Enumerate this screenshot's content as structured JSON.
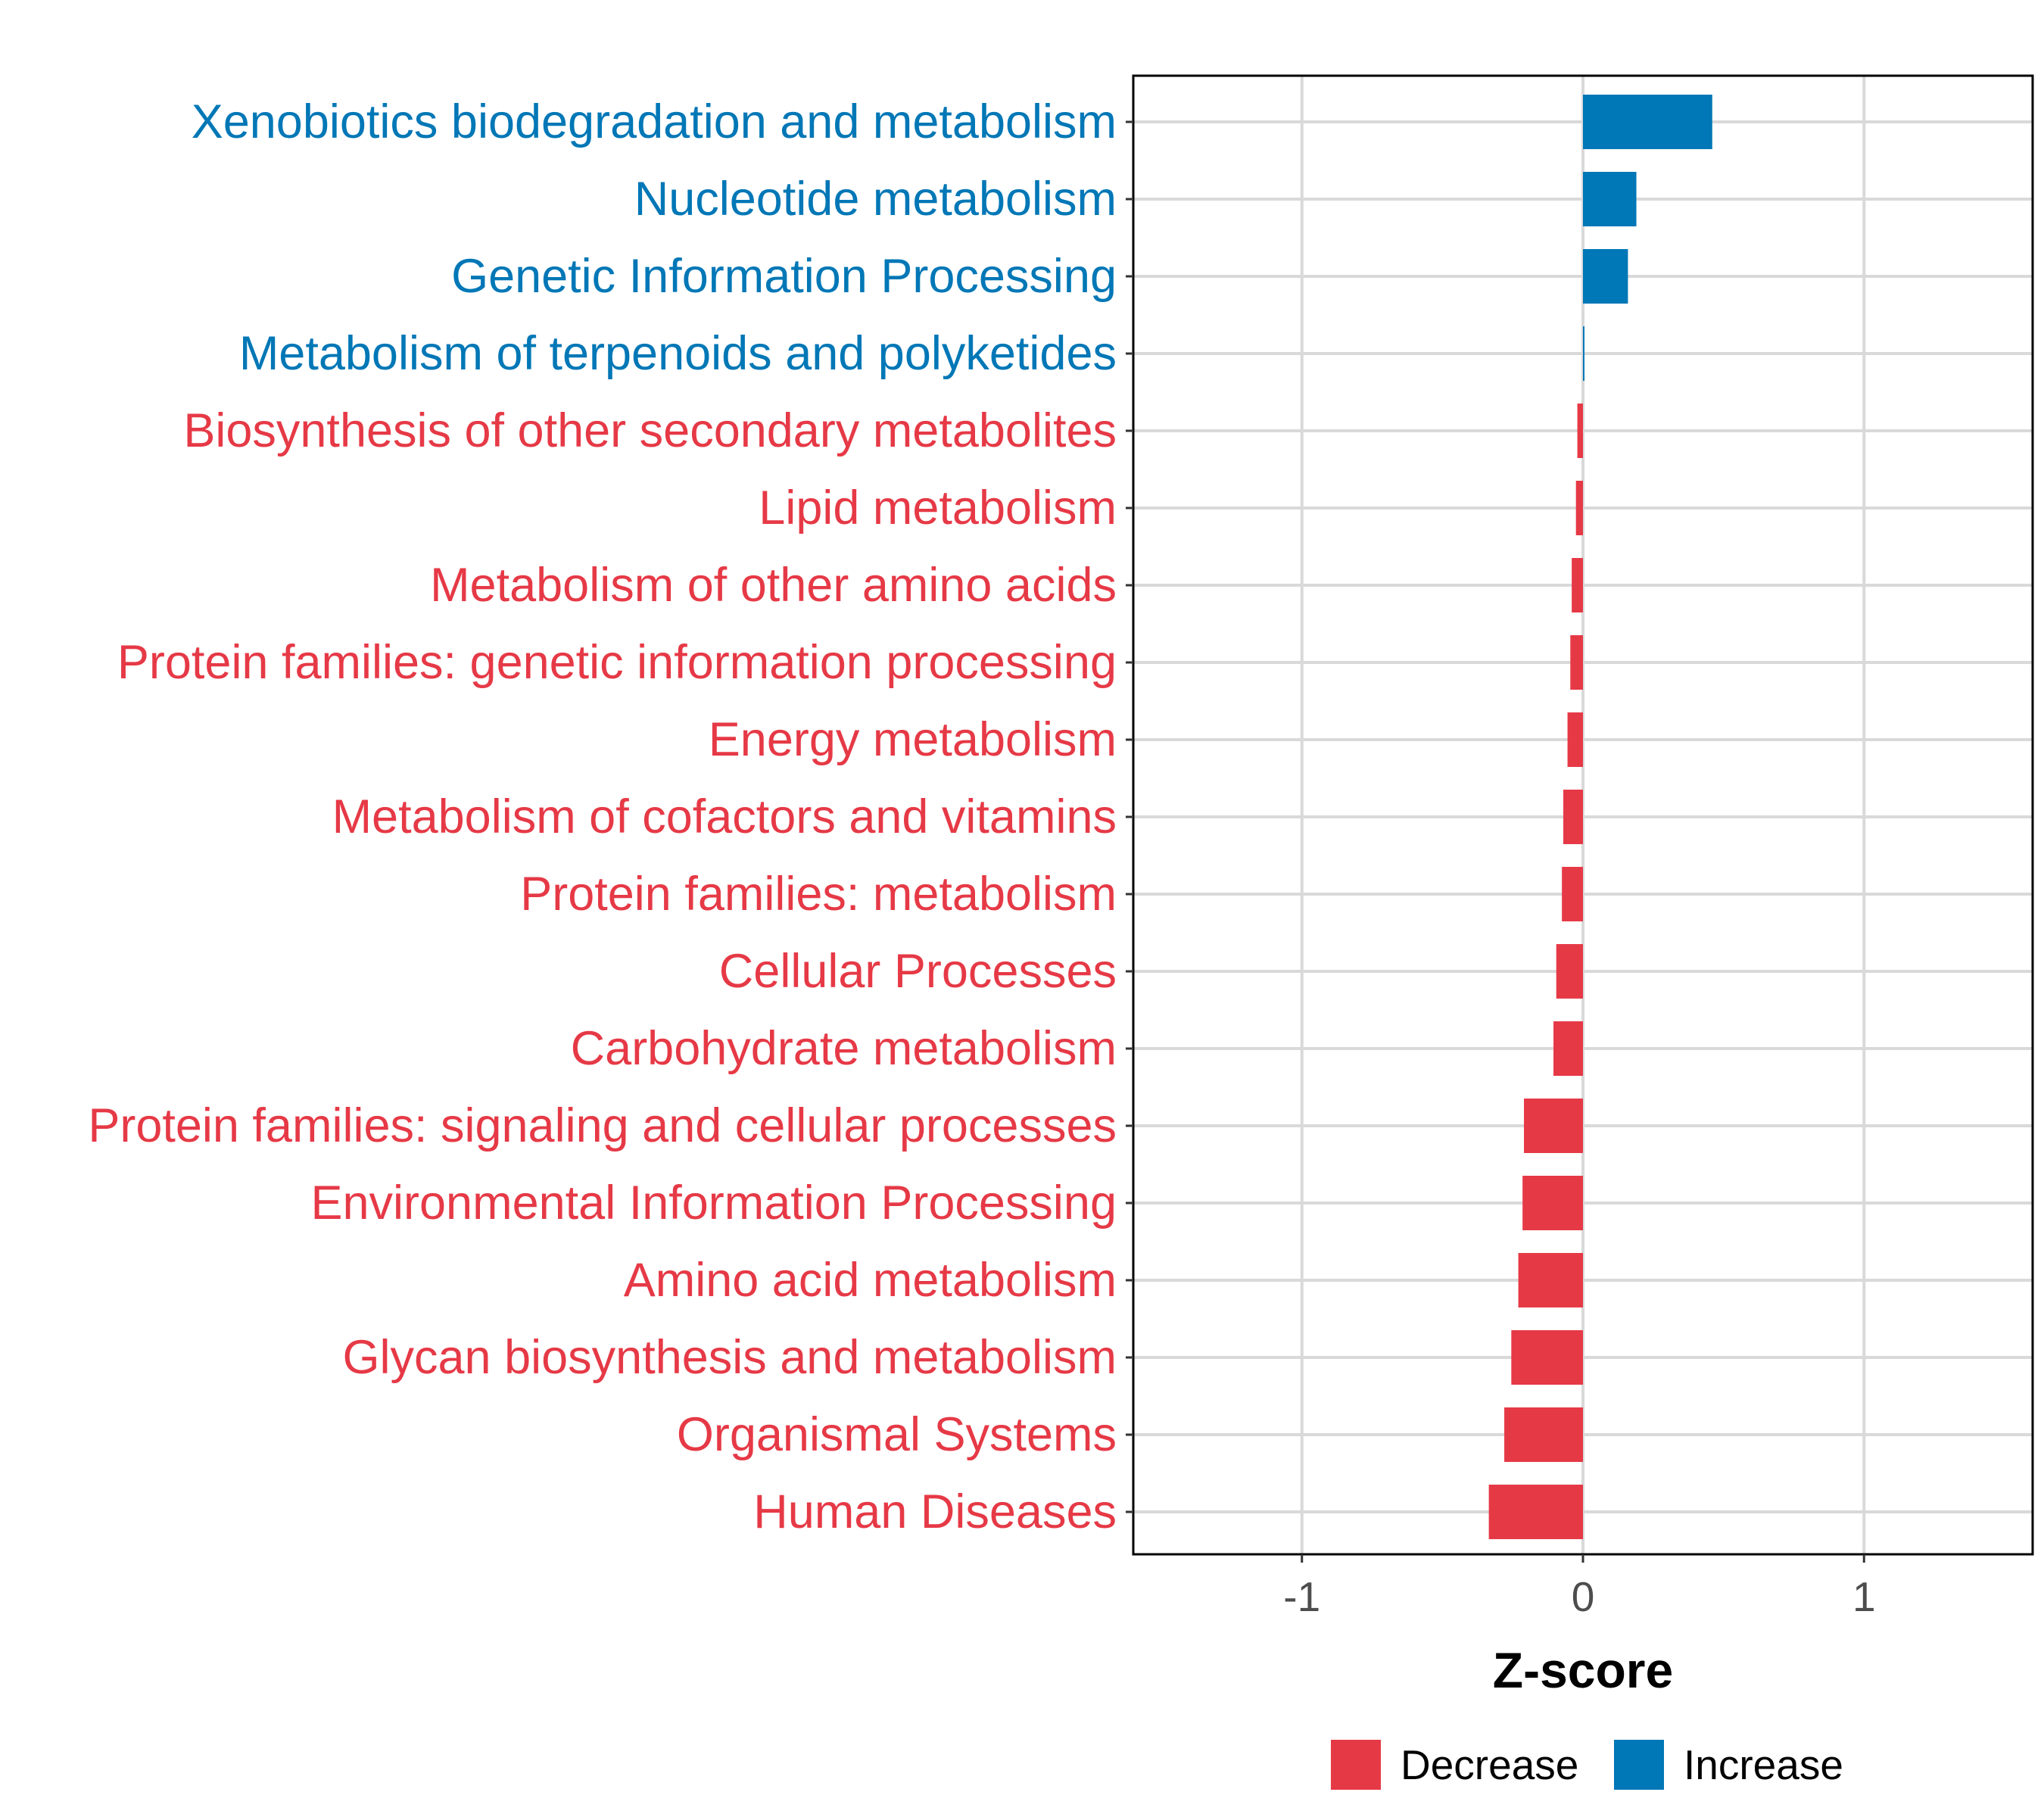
{
  "chart_data": {
    "type": "bar",
    "orientation": "horizontal",
    "xlabel": "Z-score",
    "ylabel": "",
    "xlim": [
      -1.6,
      1.6
    ],
    "x_ticks": [
      -1,
      0,
      1
    ],
    "x_tick_labels": [
      "-1",
      "0",
      "1"
    ],
    "grid": true,
    "legend_position": "bottom",
    "series_colors": {
      "Decrease": "#e63946",
      "Increase": "#0077b6"
    },
    "legend": [
      {
        "name": "Decrease",
        "color": "#e63946"
      },
      {
        "name": "Increase",
        "color": "#0077b6"
      }
    ],
    "categories": [
      "Xenobiotics biodegradation and metabolism",
      "Nucleotide metabolism",
      "Genetic Information Processing",
      "Metabolism of terpenoids and polyketides",
      "Biosynthesis of other secondary metabolites",
      "Lipid metabolism",
      "Metabolism of other amino acids",
      "Protein families: genetic information processing",
      "Energy metabolism",
      "Metabolism of cofactors and vitamins",
      "Protein families: metabolism",
      "Cellular Processes",
      "Carbohydrate metabolism",
      "Protein families: signaling and cellular processes",
      "Environmental Information Processing",
      "Amino acid metabolism",
      "Glycan biosynthesis and metabolism",
      "Organismal Systems",
      "Human Diseases"
    ],
    "values": [
      0.46,
      0.19,
      0.16,
      0.002,
      -0.02,
      -0.025,
      -0.04,
      -0.045,
      -0.055,
      -0.07,
      -0.075,
      -0.095,
      -0.105,
      -0.21,
      -0.215,
      -0.23,
      -0.255,
      -0.28,
      -0.335
    ],
    "groups": [
      "Increase",
      "Increase",
      "Increase",
      "Increase",
      "Decrease",
      "Decrease",
      "Decrease",
      "Decrease",
      "Decrease",
      "Decrease",
      "Decrease",
      "Decrease",
      "Decrease",
      "Decrease",
      "Decrease",
      "Decrease",
      "Decrease",
      "Decrease",
      "Decrease"
    ]
  }
}
